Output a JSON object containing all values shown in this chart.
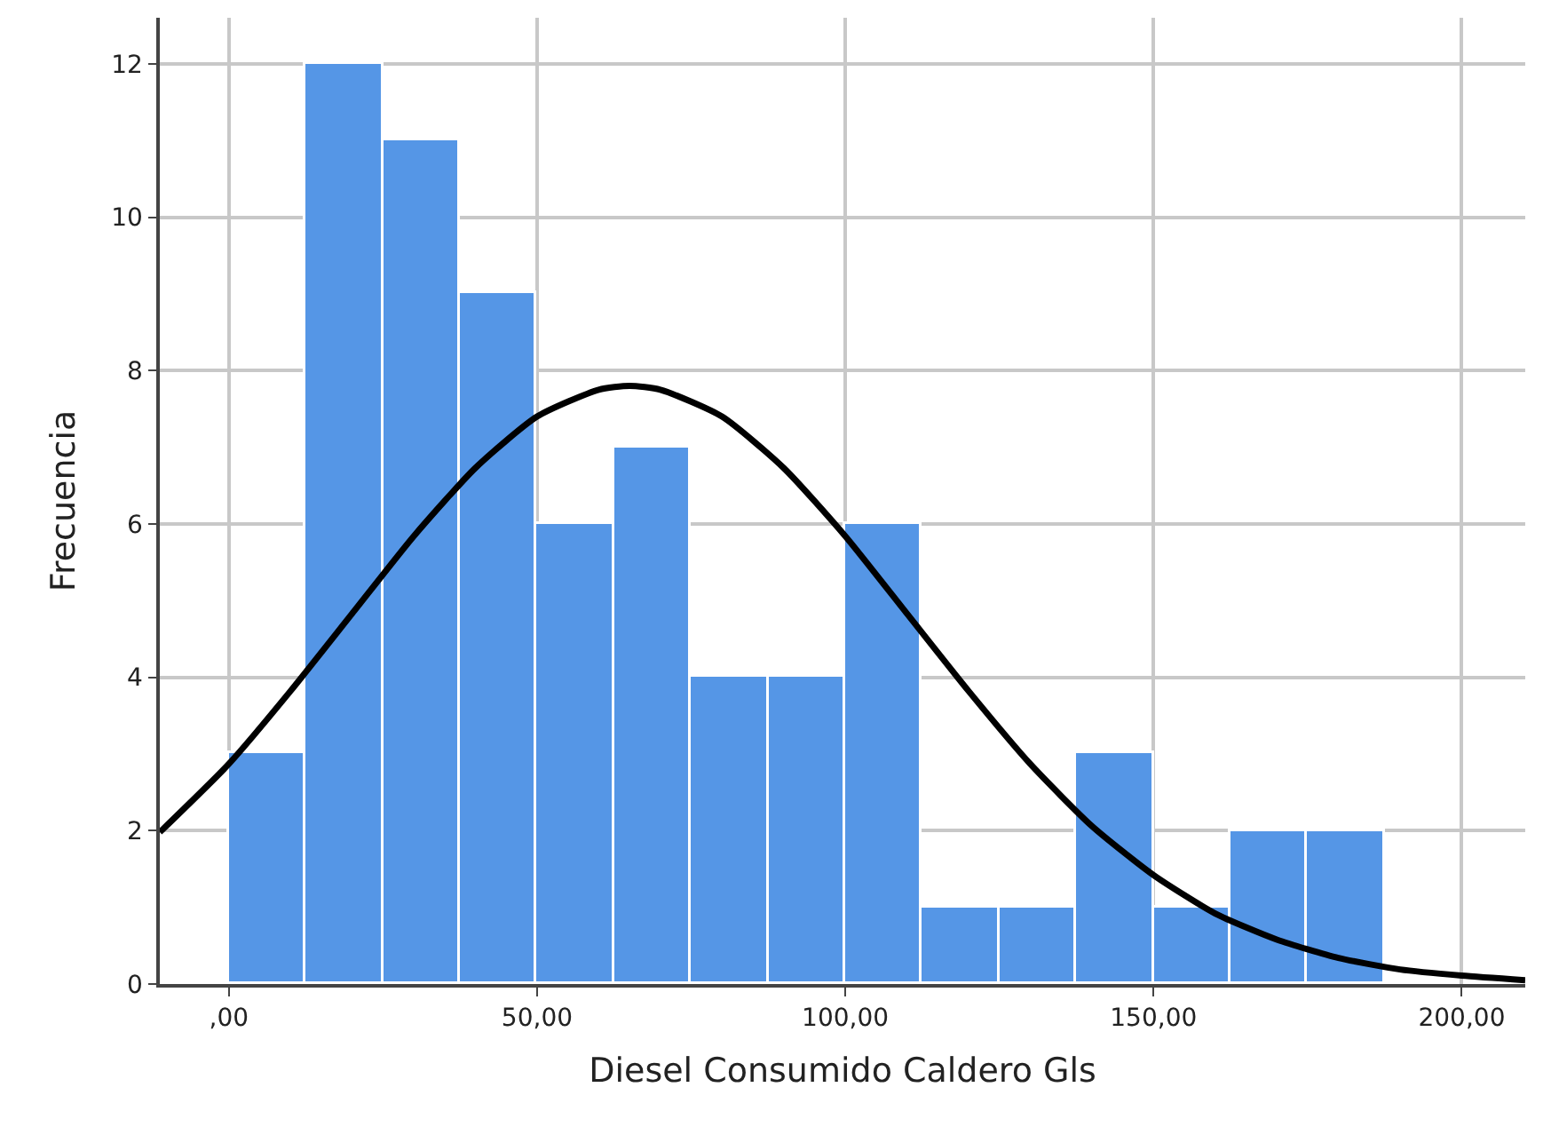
{
  "chart_data": {
    "type": "histogram",
    "xlabel": "Diesel Consumido Caldero Gls",
    "ylabel": "Frecuencia",
    "bins": [
      0,
      12.5,
      25,
      37.5,
      50,
      62.5,
      75,
      87.5,
      100,
      112.5,
      125,
      137.5,
      150,
      162.5,
      175,
      187.5
    ],
    "values": [
      3,
      12,
      11,
      9,
      6,
      7,
      4,
      4,
      6,
      1,
      1,
      3,
      1,
      2,
      2
    ],
    "color": "#5596e6",
    "series": [
      {
        "type": "line",
        "color": "#000000",
        "x": [
          -11.2,
          0,
          10,
          20,
          30,
          40,
          50,
          60,
          65,
          70,
          80,
          90,
          100,
          110,
          120,
          130,
          140,
          150,
          160,
          170,
          180,
          190,
          200,
          210.3
        ],
        "values": [
          1.98,
          2.87,
          3.82,
          4.83,
          5.84,
          6.73,
          7.4,
          7.75,
          7.8,
          7.75,
          7.4,
          6.73,
          5.84,
          4.83,
          3.82,
          2.87,
          2.06,
          1.42,
          0.92,
          0.58,
          0.34,
          0.19,
          0.11,
          0.05
        ]
      }
    ],
    "xlim": [
      -11.2,
      210.3
    ],
    "xticks": [
      {
        "value": 0,
        "label": ",00"
      },
      {
        "value": 50,
        "label": "50,00"
      },
      {
        "value": 100,
        "label": "100,00"
      },
      {
        "value": 150,
        "label": "150,00"
      },
      {
        "value": 200,
        "label": "200,00"
      }
    ],
    "ylim": [
      0,
      12.6
    ],
    "yticks": [
      0,
      2,
      4,
      6,
      8,
      10,
      12
    ],
    "grid": true,
    "marker": "none",
    "line_style": "solid"
  }
}
